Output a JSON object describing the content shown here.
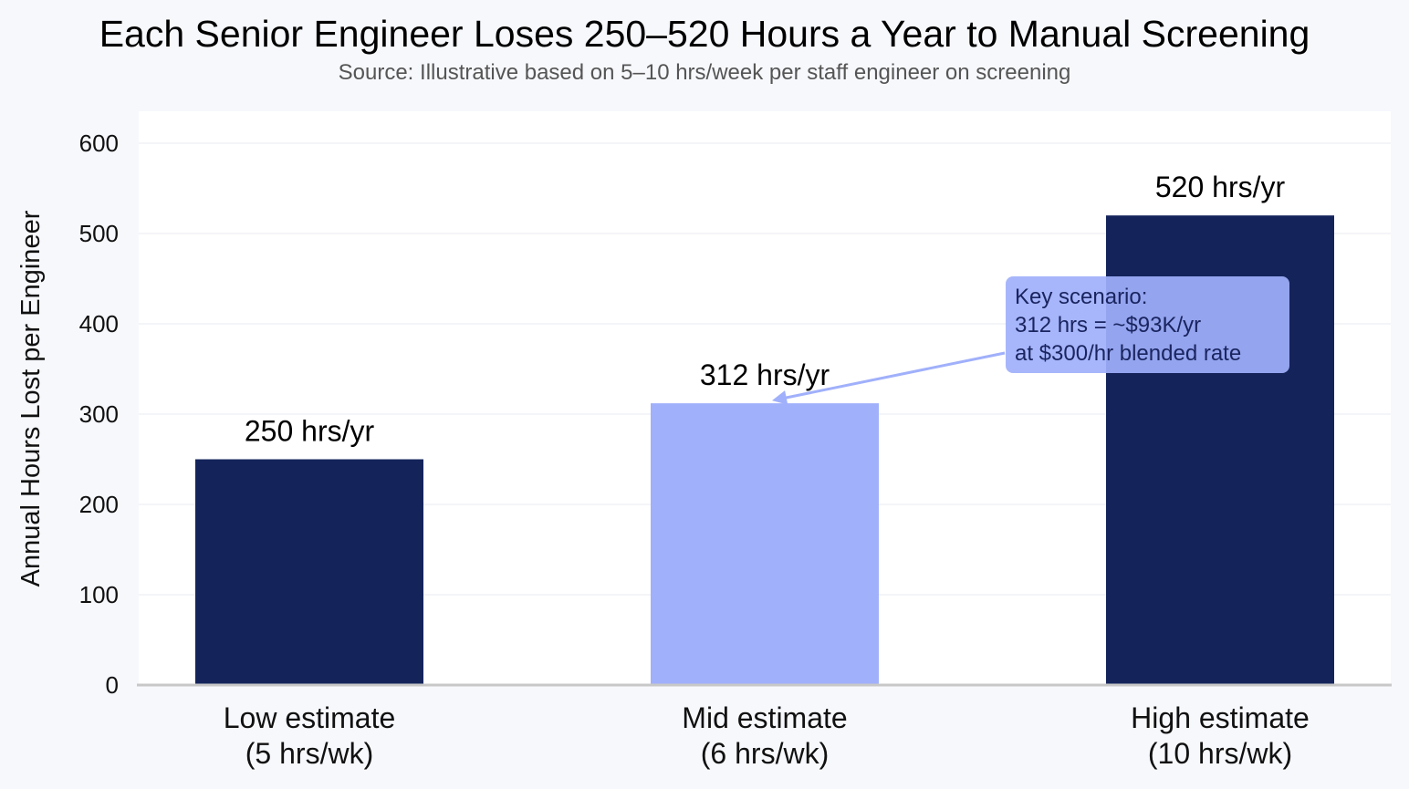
{
  "title": "Each Senior Engineer Loses 250–520 Hours a Year to Manual Screening",
  "subtitle": "Source: Illustrative based on 5–10 hrs/week per staff engineer on screening",
  "chart_data": {
    "type": "bar",
    "categories": [
      [
        "Low estimate",
        "(5 hrs/wk)"
      ],
      [
        "Mid estimate",
        "(6 hrs/wk)"
      ],
      [
        "High estimate",
        "(10 hrs/wk)"
      ]
    ],
    "values": [
      250,
      312,
      520
    ],
    "data_labels": [
      "250 hrs/yr",
      "312 hrs/yr",
      "520 hrs/yr"
    ],
    "bar_colors": [
      "#14245b",
      "#a0b0fb",
      "#14245b"
    ],
    "xlabel": "",
    "ylabel": "Annual Hours Lost per Engineer",
    "ylim": [
      0,
      630
    ],
    "yticks": [
      0,
      100,
      200,
      300,
      400,
      500,
      600
    ],
    "grid": true,
    "annotation": {
      "lines": [
        "Key scenario:",
        "312 hrs = ~$93K/yr",
        "at $300/hr blended rate"
      ],
      "target_category_index": 1,
      "box_color": "#a0b0fb",
      "arrow_color": "#a0b0fb"
    }
  }
}
